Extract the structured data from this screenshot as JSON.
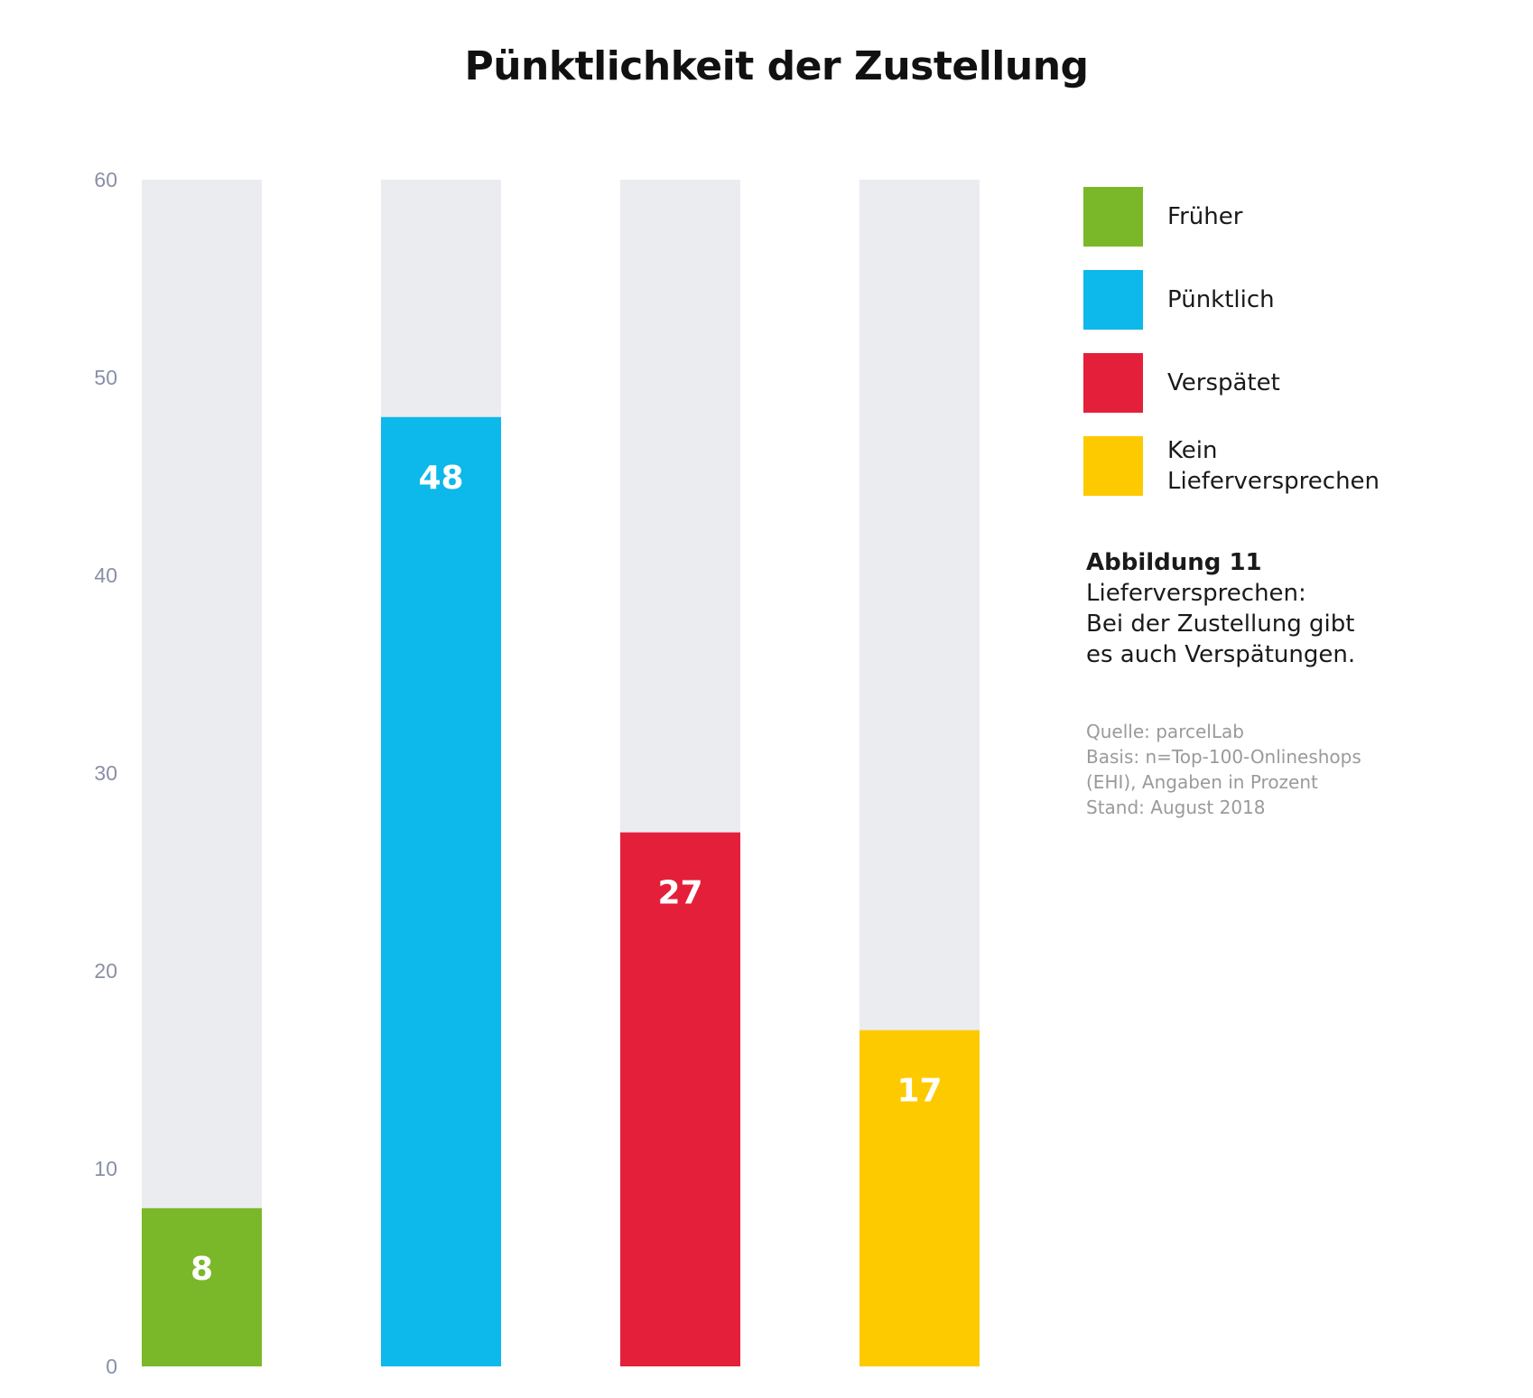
{
  "chart_data": {
    "type": "bar",
    "title": "Pünktlichkeit der Zustellung",
    "categories": [
      "Früher",
      "Pünktlich",
      "Verspätet",
      "Kein Lieferversprechen"
    ],
    "values": [
      8,
      48,
      27,
      17
    ],
    "colors": [
      "#7ab829",
      "#0db8ea",
      "#e41f3a",
      "#fdca00"
    ],
    "track_color": "#ebecf0",
    "ylim": [
      0,
      60
    ],
    "yticks": [
      0,
      10,
      20,
      30,
      40,
      50,
      60
    ],
    "xlabel": "",
    "ylabel": "",
    "grid": false,
    "legend_position": "right"
  },
  "legend": {
    "items": [
      {
        "label": "Früher",
        "color": "#7ab829"
      },
      {
        "label": "Pünktlich",
        "color": "#0db8ea"
      },
      {
        "label": "Verspätet",
        "color": "#e41f3a"
      },
      {
        "label": "Kein Lieferversprechen",
        "color": "#fdca00"
      }
    ]
  },
  "caption": {
    "heading": "Abbildung 11",
    "text": "Lieferversprechen:\nBei der Zustellung gibt\nes auch Verspätungen."
  },
  "source": {
    "text": "Quelle: parcelLab\nBasis: n=Top-100-Onlineshops\n(EHI), Angaben in Prozent\nStand: August 2018"
  }
}
